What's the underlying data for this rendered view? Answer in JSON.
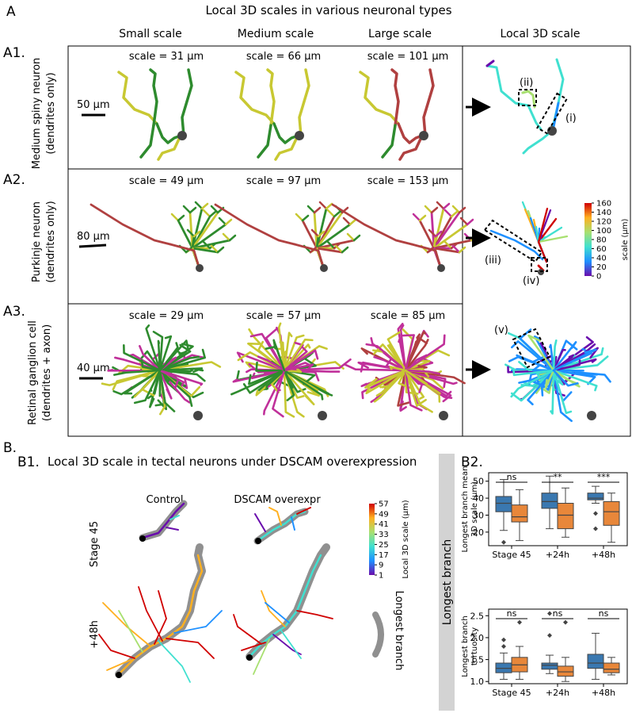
{
  "panel_a": {
    "letter": "A",
    "title": "Local 3D scales in various neuronal types",
    "col_headers": [
      "Small scale",
      "Medium scale",
      "Large scale",
      "Local 3D scale"
    ],
    "rows": [
      {
        "id": "A1.",
        "label_line1": "Medium spiny neuron",
        "label_line2": "(dendrites only)",
        "scale_bar": "50 µm",
        "scales": [
          "scale = 31 µm",
          "scale = 66 µm",
          "scale = 101 µm"
        ]
      },
      {
        "id": "A2.",
        "label_line1": "Purkinje neuron",
        "label_line2": "(dendrites only)",
        "scale_bar": "80 µm",
        "scales": [
          "scale = 49 µm",
          "scale = 97 µm",
          "scale = 153 µm"
        ]
      },
      {
        "id": "A3.",
        "label_line1": "Retinal ganglion cell",
        "label_line2": "(dendrites + axon)",
        "scale_bar": "40 µm",
        "scales": [
          "scale = 29 µm",
          "scale = 57 µm",
          "scale = 85 µm"
        ]
      }
    ],
    "callouts": [
      "(i)",
      "(ii)",
      "(iii)",
      "(iv)",
      "(v)"
    ],
    "colorbar": {
      "ticks": [
        "160",
        "140",
        "120",
        "100",
        "80",
        "60",
        "40",
        "20",
        "0"
      ],
      "label": "scale (µm)"
    },
    "colors": {
      "low": "#2e8b2e",
      "mid": "#c8c832",
      "high": "#b04040",
      "large": "#c0309a"
    }
  },
  "panel_b": {
    "letter": "B.",
    "b1": {
      "id": "B1.",
      "title": "Local 3D scale in tectal neurons under DSCAM overexpression",
      "col_headers": [
        "Control",
        "DSCAM overexpr"
      ],
      "row_labels": [
        "Stage 45",
        "+48h"
      ],
      "colorbar": {
        "ticks": [
          "57",
          "49",
          "41",
          "33",
          "25",
          "17",
          "9",
          "1"
        ],
        "label": "Local 3D scale (µm)"
      },
      "longest_branch_legend": "Longest branch",
      "side_label": "Longest branch"
    },
    "b2": {
      "id": "B2.",
      "xticks": [
        "Stage 45",
        "+24h",
        "+48h"
      ],
      "colors": {
        "control": "#3a78b0",
        "dscam": "#e8873a"
      },
      "top_plot": {
        "ylabel_line1": "Longest branch mean",
        "ylabel_line2": "3D scale (µm)",
        "yticks": [
          "50",
          "40",
          "30",
          "20"
        ],
        "significance": [
          "ns",
          "**",
          "***"
        ],
        "ylim": [
          12,
          55
        ],
        "boxes": [
          {
            "group": "Stage 45",
            "control": {
              "lo": 21,
              "q1": 32,
              "med": 37,
              "q3": 41,
              "hi": 51,
              "out": [
                14
              ]
            },
            "dscam": {
              "lo": 15,
              "q1": 26,
              "med": 29,
              "q3": 36,
              "hi": 45,
              "out": []
            }
          },
          {
            "group": "+24h",
            "control": {
              "lo": 22,
              "q1": 34,
              "med": 38,
              "q3": 43,
              "hi": 53,
              "out": []
            },
            "dscam": {
              "lo": 17,
              "q1": 22,
              "med": 30,
              "q3": 37,
              "hi": 46,
              "out": []
            }
          },
          {
            "group": "+48h",
            "control": {
              "lo": 37,
              "q1": 39,
              "med": 40,
              "q3": 43,
              "hi": 47,
              "out": [
                31,
                22
              ]
            },
            "dscam": {
              "lo": 14,
              "q1": 24,
              "med": 32,
              "q3": 38,
              "hi": 43,
              "out": []
            }
          }
        ]
      },
      "bottom_plot": {
        "ylabel_line1": "Longest branch",
        "ylabel_line2": "tortuosity",
        "yticks": [
          "2.5",
          "2.0",
          "1.5",
          "1.0"
        ],
        "significance": [
          "ns",
          "ns",
          "ns"
        ],
        "ylim": [
          0.95,
          2.65
        ],
        "boxes": [
          {
            "group": "Stage 45",
            "control": {
              "lo": 1.05,
              "q1": 1.2,
              "med": 1.3,
              "q3": 1.42,
              "hi": 1.65,
              "out": [
                1.95,
                1.8
              ]
            },
            "dscam": {
              "lo": 1.05,
              "q1": 1.22,
              "med": 1.38,
              "q3": 1.55,
              "hi": 1.8,
              "out": [
                2.35
              ]
            }
          },
          {
            "group": "+24h",
            "control": {
              "lo": 1.18,
              "q1": 1.28,
              "med": 1.37,
              "q3": 1.42,
              "hi": 1.6,
              "out": [
                2.55,
                2.05
              ]
            },
            "dscam": {
              "lo": 1.0,
              "q1": 1.12,
              "med": 1.22,
              "q3": 1.35,
              "hi": 1.55,
              "out": [
                2.35
              ]
            }
          },
          {
            "group": "+48h",
            "control": {
              "lo": 1.05,
              "q1": 1.3,
              "med": 1.42,
              "q3": 1.62,
              "hi": 2.1,
              "out": []
            },
            "dscam": {
              "lo": 1.15,
              "q1": 1.2,
              "med": 1.28,
              "q3": 1.42,
              "hi": 1.55,
              "out": []
            }
          }
        ]
      }
    }
  }
}
